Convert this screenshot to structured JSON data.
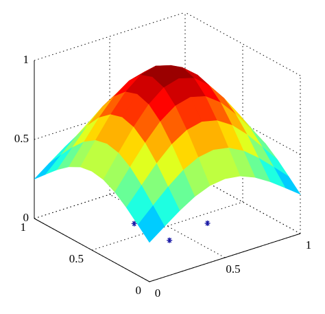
{
  "chart_data": {
    "type": "surface",
    "x": [
      0,
      0.1,
      0.2,
      0.3,
      0.4,
      0.5,
      0.6,
      0.7,
      0.8,
      0.9,
      1
    ],
    "y": [
      0,
      0.1,
      0.2,
      0.3,
      0.4,
      0.5,
      0.6,
      0.7,
      0.8,
      0.9,
      1
    ],
    "z": [
      [
        0.249,
        0.32,
        0.389,
        0.447,
        0.486,
        0.499,
        0.486,
        0.447,
        0.389,
        0.32,
        0.249
      ],
      [
        0.32,
        0.411,
        0.499,
        0.574,
        0.624,
        0.641,
        0.624,
        0.574,
        0.499,
        0.411,
        0.32
      ],
      [
        0.389,
        0.499,
        0.607,
        0.697,
        0.757,
        0.779,
        0.757,
        0.697,
        0.607,
        0.499,
        0.389
      ],
      [
        0.447,
        0.574,
        0.697,
        0.801,
        0.87,
        0.895,
        0.87,
        0.801,
        0.697,
        0.574,
        0.447
      ],
      [
        0.486,
        0.624,
        0.757,
        0.87,
        0.946,
        0.973,
        0.946,
        0.87,
        0.757,
        0.624,
        0.486
      ],
      [
        0.499,
        0.641,
        0.779,
        0.895,
        0.973,
        1,
        0.973,
        0.895,
        0.779,
        0.641,
        0.499
      ],
      [
        0.486,
        0.624,
        0.757,
        0.87,
        0.946,
        0.973,
        0.946,
        0.87,
        0.757,
        0.624,
        0.486
      ],
      [
        0.447,
        0.574,
        0.697,
        0.801,
        0.87,
        0.895,
        0.87,
        0.801,
        0.697,
        0.574,
        0.447
      ],
      [
        0.389,
        0.499,
        0.607,
        0.697,
        0.757,
        0.779,
        0.757,
        0.697,
        0.607,
        0.499,
        0.389
      ],
      [
        0.32,
        0.411,
        0.499,
        0.574,
        0.624,
        0.641,
        0.624,
        0.574,
        0.499,
        0.411,
        0.32
      ],
      [
        0.249,
        0.32,
        0.389,
        0.447,
        0.486,
        0.499,
        0.486,
        0.447,
        0.389,
        0.32,
        0.249
      ]
    ],
    "colormap": "jet",
    "points": {
      "x": [
        0.38,
        0.4,
        0.69
      ],
      "y": [
        0.63,
        0.35,
        0.4
      ],
      "z": [
        0,
        0,
        0
      ],
      "color": "#1a1aa6"
    },
    "xlim": [
      0,
      1
    ],
    "ylim": [
      0,
      1
    ],
    "zlim": [
      0,
      1
    ],
    "xticks": [
      0,
      0.5,
      1
    ],
    "yticks": [
      0,
      0.5,
      1
    ],
    "zticks": [
      0,
      0.5,
      1
    ],
    "grid": true
  }
}
